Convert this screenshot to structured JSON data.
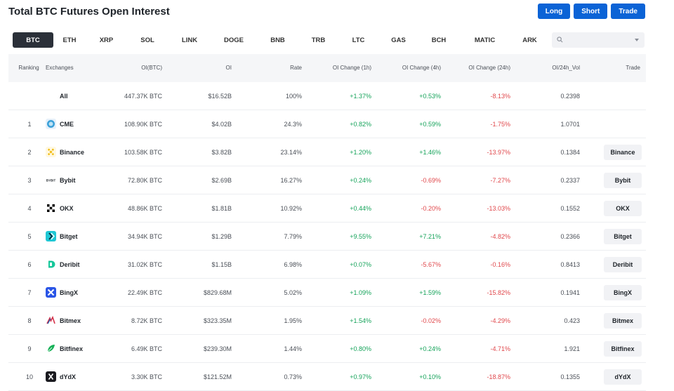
{
  "title": "Total BTC Futures Open Interest",
  "top_buttons": {
    "long": "Long",
    "short": "Short",
    "trade": "Trade"
  },
  "tabs": [
    "BTC",
    "ETH",
    "XRP",
    "SOL",
    "LINK",
    "DOGE",
    "BNB",
    "TRB",
    "LTC",
    "GAS",
    "BCH",
    "MATIC",
    "ARK"
  ],
  "active_tab": "BTC",
  "search": {
    "value": ""
  },
  "columns": [
    "Ranking",
    "Exchanges",
    "OI(BTC)",
    "OI",
    "Rate",
    "OI Change (1h)",
    "OI Change (4h)",
    "OI Change (24h)",
    "OI/24h_Vol",
    "Trade"
  ],
  "colors": {
    "accent": "#0b63d6",
    "positive": "#15a35a",
    "negative": "#e0474b",
    "tab_active": "#2b3039"
  },
  "rows": [
    {
      "rank": "",
      "exchange": "All",
      "oi_btc": "447.37K BTC",
      "oi": "$16.52B",
      "rate": "100%",
      "ch1h": "+1.37%",
      "ch4h": "+0.53%",
      "ch24h": "-8.13%",
      "vol": "0.2398",
      "trade": "",
      "icon": ""
    },
    {
      "rank": "1",
      "exchange": "CME",
      "oi_btc": "108.90K BTC",
      "oi": "$4.02B",
      "rate": "24.3%",
      "ch1h": "+0.82%",
      "ch4h": "+0.59%",
      "ch24h": "-1.75%",
      "vol": "1.0701",
      "trade": "",
      "icon": "cme-icon"
    },
    {
      "rank": "2",
      "exchange": "Binance",
      "oi_btc": "103.58K BTC",
      "oi": "$3.82B",
      "rate": "23.14%",
      "ch1h": "+1.20%",
      "ch4h": "+1.46%",
      "ch24h": "-13.97%",
      "vol": "0.1384",
      "trade": "Binance",
      "icon": "binance-icon"
    },
    {
      "rank": "3",
      "exchange": "Bybit",
      "oi_btc": "72.80K BTC",
      "oi": "$2.69B",
      "rate": "16.27%",
      "ch1h": "+0.24%",
      "ch4h": "-0.69%",
      "ch24h": "-7.27%",
      "vol": "0.2337",
      "trade": "Bybit",
      "icon": "bybit-icon",
      "logo_text": "BYBIT"
    },
    {
      "rank": "4",
      "exchange": "OKX",
      "oi_btc": "48.86K BTC",
      "oi": "$1.81B",
      "rate": "10.92%",
      "ch1h": "+0.44%",
      "ch4h": "-0.20%",
      "ch24h": "-13.03%",
      "vol": "0.1552",
      "trade": "OKX",
      "icon": "okx-icon"
    },
    {
      "rank": "5",
      "exchange": "Bitget",
      "oi_btc": "34.94K BTC",
      "oi": "$1.29B",
      "rate": "7.79%",
      "ch1h": "+9.55%",
      "ch4h": "+7.21%",
      "ch24h": "-4.82%",
      "vol": "0.2366",
      "trade": "Bitget",
      "icon": "bitget-icon"
    },
    {
      "rank": "6",
      "exchange": "Deribit",
      "oi_btc": "31.02K BTC",
      "oi": "$1.15B",
      "rate": "6.98%",
      "ch1h": "+0.07%",
      "ch4h": "-5.67%",
      "ch24h": "-0.16%",
      "vol": "0.8413",
      "trade": "Deribit",
      "icon": "deribit-icon"
    },
    {
      "rank": "7",
      "exchange": "BingX",
      "oi_btc": "22.49K BTC",
      "oi": "$829.68M",
      "rate": "5.02%",
      "ch1h": "+1.09%",
      "ch4h": "+1.59%",
      "ch24h": "-15.82%",
      "vol": "0.1941",
      "trade": "BingX",
      "icon": "bingx-icon"
    },
    {
      "rank": "8",
      "exchange": "Bitmex",
      "oi_btc": "8.72K BTC",
      "oi": "$323.35M",
      "rate": "1.95%",
      "ch1h": "+1.54%",
      "ch4h": "-0.02%",
      "ch24h": "-4.29%",
      "vol": "0.423",
      "trade": "Bitmex",
      "icon": "bitmex-icon"
    },
    {
      "rank": "9",
      "exchange": "Bitfinex",
      "oi_btc": "6.49K BTC",
      "oi": "$239.30M",
      "rate": "1.44%",
      "ch1h": "+0.80%",
      "ch4h": "+0.24%",
      "ch24h": "-4.71%",
      "vol": "1.921",
      "trade": "Bitfinex",
      "icon": "bitfinex-icon"
    },
    {
      "rank": "10",
      "exchange": "dYdX",
      "oi_btc": "3.30K BTC",
      "oi": "$121.52M",
      "rate": "0.73%",
      "ch1h": "+0.97%",
      "ch4h": "+0.10%",
      "ch24h": "-18.87%",
      "vol": "0.1355",
      "trade": "dYdX",
      "icon": "dydx-icon"
    }
  ]
}
